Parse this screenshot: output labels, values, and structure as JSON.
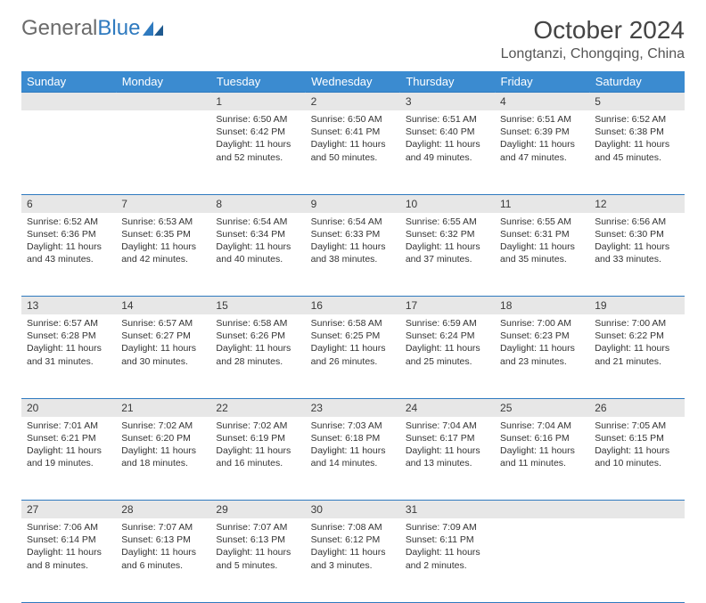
{
  "brand": {
    "name_a": "General",
    "name_b": "Blue"
  },
  "title": "October 2024",
  "location": "Longtanzi, Chongqing, China",
  "colors": {
    "header_bg": "#3b8bd0",
    "header_text": "#ffffff",
    "rule": "#2f7abf",
    "daynum_bg": "#e7e7e7",
    "text": "#333333",
    "logo_gray": "#6b6b6b",
    "logo_blue": "#2f7abf"
  },
  "weekdays": [
    "Sunday",
    "Monday",
    "Tuesday",
    "Wednesday",
    "Thursday",
    "Friday",
    "Saturday"
  ],
  "weeks": [
    [
      null,
      null,
      {
        "n": "1",
        "sr": "6:50 AM",
        "ss": "6:42 PM",
        "dl": "11 hours and 52 minutes."
      },
      {
        "n": "2",
        "sr": "6:50 AM",
        "ss": "6:41 PM",
        "dl": "11 hours and 50 minutes."
      },
      {
        "n": "3",
        "sr": "6:51 AM",
        "ss": "6:40 PM",
        "dl": "11 hours and 49 minutes."
      },
      {
        "n": "4",
        "sr": "6:51 AM",
        "ss": "6:39 PM",
        "dl": "11 hours and 47 minutes."
      },
      {
        "n": "5",
        "sr": "6:52 AM",
        "ss": "6:38 PM",
        "dl": "11 hours and 45 minutes."
      }
    ],
    [
      {
        "n": "6",
        "sr": "6:52 AM",
        "ss": "6:36 PM",
        "dl": "11 hours and 43 minutes."
      },
      {
        "n": "7",
        "sr": "6:53 AM",
        "ss": "6:35 PM",
        "dl": "11 hours and 42 minutes."
      },
      {
        "n": "8",
        "sr": "6:54 AM",
        "ss": "6:34 PM",
        "dl": "11 hours and 40 minutes."
      },
      {
        "n": "9",
        "sr": "6:54 AM",
        "ss": "6:33 PM",
        "dl": "11 hours and 38 minutes."
      },
      {
        "n": "10",
        "sr": "6:55 AM",
        "ss": "6:32 PM",
        "dl": "11 hours and 37 minutes."
      },
      {
        "n": "11",
        "sr": "6:55 AM",
        "ss": "6:31 PM",
        "dl": "11 hours and 35 minutes."
      },
      {
        "n": "12",
        "sr": "6:56 AM",
        "ss": "6:30 PM",
        "dl": "11 hours and 33 minutes."
      }
    ],
    [
      {
        "n": "13",
        "sr": "6:57 AM",
        "ss": "6:28 PM",
        "dl": "11 hours and 31 minutes."
      },
      {
        "n": "14",
        "sr": "6:57 AM",
        "ss": "6:27 PM",
        "dl": "11 hours and 30 minutes."
      },
      {
        "n": "15",
        "sr": "6:58 AM",
        "ss": "6:26 PM",
        "dl": "11 hours and 28 minutes."
      },
      {
        "n": "16",
        "sr": "6:58 AM",
        "ss": "6:25 PM",
        "dl": "11 hours and 26 minutes."
      },
      {
        "n": "17",
        "sr": "6:59 AM",
        "ss": "6:24 PM",
        "dl": "11 hours and 25 minutes."
      },
      {
        "n": "18",
        "sr": "7:00 AM",
        "ss": "6:23 PM",
        "dl": "11 hours and 23 minutes."
      },
      {
        "n": "19",
        "sr": "7:00 AM",
        "ss": "6:22 PM",
        "dl": "11 hours and 21 minutes."
      }
    ],
    [
      {
        "n": "20",
        "sr": "7:01 AM",
        "ss": "6:21 PM",
        "dl": "11 hours and 19 minutes."
      },
      {
        "n": "21",
        "sr": "7:02 AM",
        "ss": "6:20 PM",
        "dl": "11 hours and 18 minutes."
      },
      {
        "n": "22",
        "sr": "7:02 AM",
        "ss": "6:19 PM",
        "dl": "11 hours and 16 minutes."
      },
      {
        "n": "23",
        "sr": "7:03 AM",
        "ss": "6:18 PM",
        "dl": "11 hours and 14 minutes."
      },
      {
        "n": "24",
        "sr": "7:04 AM",
        "ss": "6:17 PM",
        "dl": "11 hours and 13 minutes."
      },
      {
        "n": "25",
        "sr": "7:04 AM",
        "ss": "6:16 PM",
        "dl": "11 hours and 11 minutes."
      },
      {
        "n": "26",
        "sr": "7:05 AM",
        "ss": "6:15 PM",
        "dl": "11 hours and 10 minutes."
      }
    ],
    [
      {
        "n": "27",
        "sr": "7:06 AM",
        "ss": "6:14 PM",
        "dl": "11 hours and 8 minutes."
      },
      {
        "n": "28",
        "sr": "7:07 AM",
        "ss": "6:13 PM",
        "dl": "11 hours and 6 minutes."
      },
      {
        "n": "29",
        "sr": "7:07 AM",
        "ss": "6:13 PM",
        "dl": "11 hours and 5 minutes."
      },
      {
        "n": "30",
        "sr": "7:08 AM",
        "ss": "6:12 PM",
        "dl": "11 hours and 3 minutes."
      },
      {
        "n": "31",
        "sr": "7:09 AM",
        "ss": "6:11 PM",
        "dl": "11 hours and 2 minutes."
      },
      null,
      null
    ]
  ],
  "labels": {
    "sunrise": "Sunrise:",
    "sunset": "Sunset:",
    "daylight": "Daylight:"
  }
}
